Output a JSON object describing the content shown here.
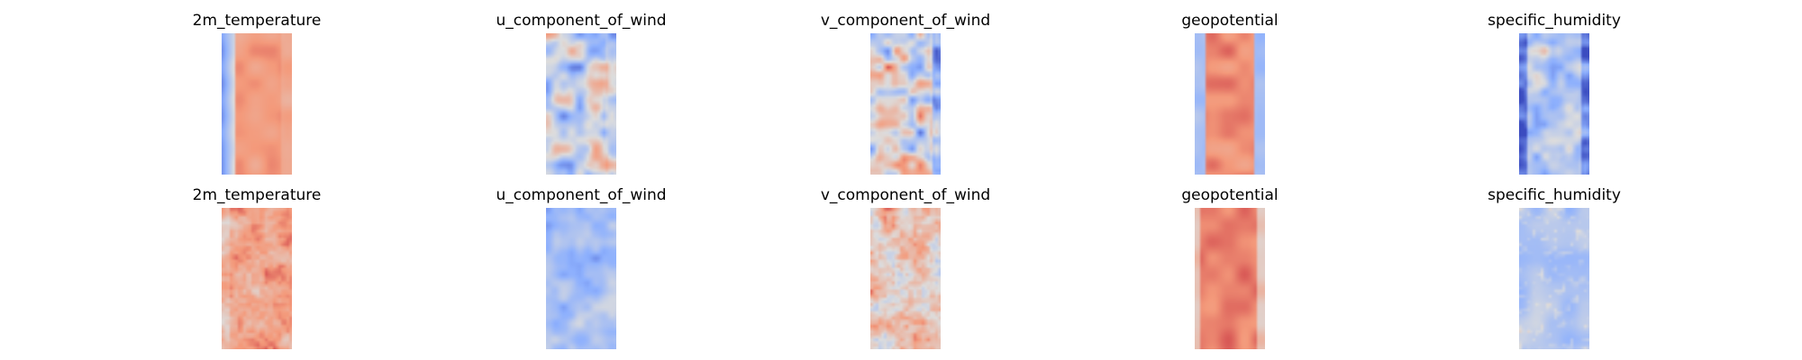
{
  "chart_data": {
    "type": "heatmap",
    "colormap": "coolwarm",
    "axes_visible": false,
    "grid": false,
    "rows": [
      {
        "panels": [
          {
            "title": "2m_temperature",
            "field": "t2m",
            "pattern": "warm-band",
            "variant": 0
          },
          {
            "title": "u_component_of_wind",
            "field": "u",
            "pattern": "cool-mixed",
            "variant": 0
          },
          {
            "title": "v_component_of_wind",
            "field": "v",
            "pattern": "neutral-dipoles",
            "variant": 0
          },
          {
            "title": "geopotential",
            "field": "z",
            "pattern": "warm-band-edges",
            "variant": 0
          },
          {
            "title": "specific_humidity",
            "field": "q",
            "pattern": "cold-edges-warm-streaks",
            "variant": 0
          }
        ]
      },
      {
        "panels": [
          {
            "title": "2m_temperature",
            "field": "t2m",
            "pattern": "warm-noisy",
            "variant": 1
          },
          {
            "title": "u_component_of_wind",
            "field": "u",
            "pattern": "cool-smooth",
            "variant": 1
          },
          {
            "title": "v_component_of_wind",
            "field": "v",
            "pattern": "neutral-noisy",
            "variant": 1
          },
          {
            "title": "geopotential",
            "field": "z",
            "pattern": "warm-solid",
            "variant": 1
          },
          {
            "title": "specific_humidity",
            "field": "q",
            "pattern": "cool-speckled",
            "variant": 1
          }
        ]
      }
    ]
  }
}
